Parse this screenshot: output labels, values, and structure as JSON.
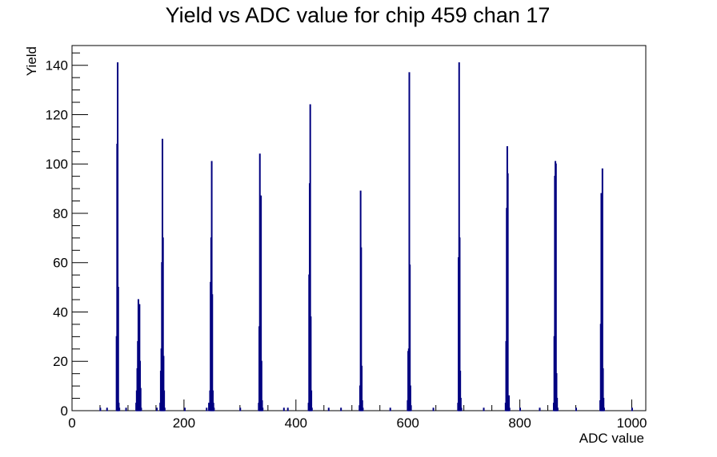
{
  "chart_data": {
    "type": "histogram",
    "title": "Yield vs ADC value for chip 459 chan 17",
    "xlabel": "ADC value",
    "ylabel": "Yield",
    "xlim": [
      0,
      1025
    ],
    "ylim": [
      0,
      148
    ],
    "x_ticks": [
      0,
      200,
      400,
      600,
      800,
      1000
    ],
    "y_ticks": [
      0,
      20,
      40,
      60,
      80,
      100,
      120,
      140
    ],
    "grid": false,
    "legend": "none",
    "line_color": "#000080",
    "bins": [
      {
        "x": 50,
        "y": 1
      },
      {
        "x": 62,
        "y": 1
      },
      {
        "x": 79,
        "y": 30
      },
      {
        "x": 80,
        "y": 108
      },
      {
        "x": 81,
        "y": 141
      },
      {
        "x": 82,
        "y": 50
      },
      {
        "x": 83,
        "y": 3
      },
      {
        "x": 84,
        "y": 1
      },
      {
        "x": 96,
        "y": 1
      },
      {
        "x": 114,
        "y": 3
      },
      {
        "x": 115,
        "y": 8
      },
      {
        "x": 116,
        "y": 17
      },
      {
        "x": 117,
        "y": 28
      },
      {
        "x": 118,
        "y": 45
      },
      {
        "x": 119,
        "y": 34
      },
      {
        "x": 120,
        "y": 43
      },
      {
        "x": 121,
        "y": 20
      },
      {
        "x": 122,
        "y": 9
      },
      {
        "x": 123,
        "y": 1
      },
      {
        "x": 151,
        "y": 1
      },
      {
        "x": 157,
        "y": 3
      },
      {
        "x": 158,
        "y": 16
      },
      {
        "x": 159,
        "y": 25
      },
      {
        "x": 160,
        "y": 60
      },
      {
        "x": 161,
        "y": 110
      },
      {
        "x": 162,
        "y": 70
      },
      {
        "x": 163,
        "y": 22
      },
      {
        "x": 164,
        "y": 8
      },
      {
        "x": 165,
        "y": 1
      },
      {
        "x": 201,
        "y": 1
      },
      {
        "x": 240,
        "y": 1
      },
      {
        "x": 244,
        "y": 3
      },
      {
        "x": 246,
        "y": 8
      },
      {
        "x": 247,
        "y": 52
      },
      {
        "x": 248,
        "y": 70
      },
      {
        "x": 249,
        "y": 101
      },
      {
        "x": 250,
        "y": 47
      },
      {
        "x": 251,
        "y": 8
      },
      {
        "x": 252,
        "y": 3
      },
      {
        "x": 253,
        "y": 1
      },
      {
        "x": 300,
        "y": 1
      },
      {
        "x": 333,
        "y": 3
      },
      {
        "x": 334,
        "y": 34
      },
      {
        "x": 335,
        "y": 104
      },
      {
        "x": 336,
        "y": 87
      },
      {
        "x": 337,
        "y": 87
      },
      {
        "x": 338,
        "y": 20
      },
      {
        "x": 339,
        "y": 4
      },
      {
        "x": 340,
        "y": 1
      },
      {
        "x": 378,
        "y": 1
      },
      {
        "x": 385,
        "y": 1
      },
      {
        "x": 422,
        "y": 3
      },
      {
        "x": 423,
        "y": 55
      },
      {
        "x": 424,
        "y": 92
      },
      {
        "x": 425,
        "y": 124
      },
      {
        "x": 426,
        "y": 38
      },
      {
        "x": 427,
        "y": 8
      },
      {
        "x": 428,
        "y": 1
      },
      {
        "x": 458,
        "y": 1
      },
      {
        "x": 480,
        "y": 1
      },
      {
        "x": 513,
        "y": 2
      },
      {
        "x": 514,
        "y": 10
      },
      {
        "x": 515,
        "y": 89
      },
      {
        "x": 516,
        "y": 66
      },
      {
        "x": 517,
        "y": 18
      },
      {
        "x": 518,
        "y": 4
      },
      {
        "x": 519,
        "y": 1
      },
      {
        "x": 568,
        "y": 1
      },
      {
        "x": 599,
        "y": 4
      },
      {
        "x": 600,
        "y": 24
      },
      {
        "x": 601,
        "y": 25
      },
      {
        "x": 602,
        "y": 137
      },
      {
        "x": 603,
        "y": 59
      },
      {
        "x": 604,
        "y": 10
      },
      {
        "x": 605,
        "y": 2
      },
      {
        "x": 645,
        "y": 1
      },
      {
        "x": 689,
        "y": 3
      },
      {
        "x": 690,
        "y": 62
      },
      {
        "x": 691,
        "y": 141
      },
      {
        "x": 692,
        "y": 70
      },
      {
        "x": 693,
        "y": 16
      },
      {
        "x": 694,
        "y": 5
      },
      {
        "x": 695,
        "y": 1
      },
      {
        "x": 735,
        "y": 1
      },
      {
        "x": 774,
        "y": 3
      },
      {
        "x": 775,
        "y": 28
      },
      {
        "x": 776,
        "y": 82
      },
      {
        "x": 777,
        "y": 107
      },
      {
        "x": 778,
        "y": 96
      },
      {
        "x": 779,
        "y": 5
      },
      {
        "x": 780,
        "y": 6
      },
      {
        "x": 781,
        "y": 1
      },
      {
        "x": 800,
        "y": 1
      },
      {
        "x": 835,
        "y": 1
      },
      {
        "x": 860,
        "y": 3
      },
      {
        "x": 861,
        "y": 30
      },
      {
        "x": 862,
        "y": 95
      },
      {
        "x": 863,
        "y": 101
      },
      {
        "x": 864,
        "y": 100
      },
      {
        "x": 865,
        "y": 15
      },
      {
        "x": 866,
        "y": 5
      },
      {
        "x": 867,
        "y": 1
      },
      {
        "x": 900,
        "y": 1
      },
      {
        "x": 943,
        "y": 4
      },
      {
        "x": 944,
        "y": 35
      },
      {
        "x": 945,
        "y": 88
      },
      {
        "x": 946,
        "y": 82
      },
      {
        "x": 947,
        "y": 98
      },
      {
        "x": 948,
        "y": 17
      },
      {
        "x": 949,
        "y": 5
      },
      {
        "x": 950,
        "y": 1
      },
      {
        "x": 1000,
        "y": 1
      }
    ]
  }
}
